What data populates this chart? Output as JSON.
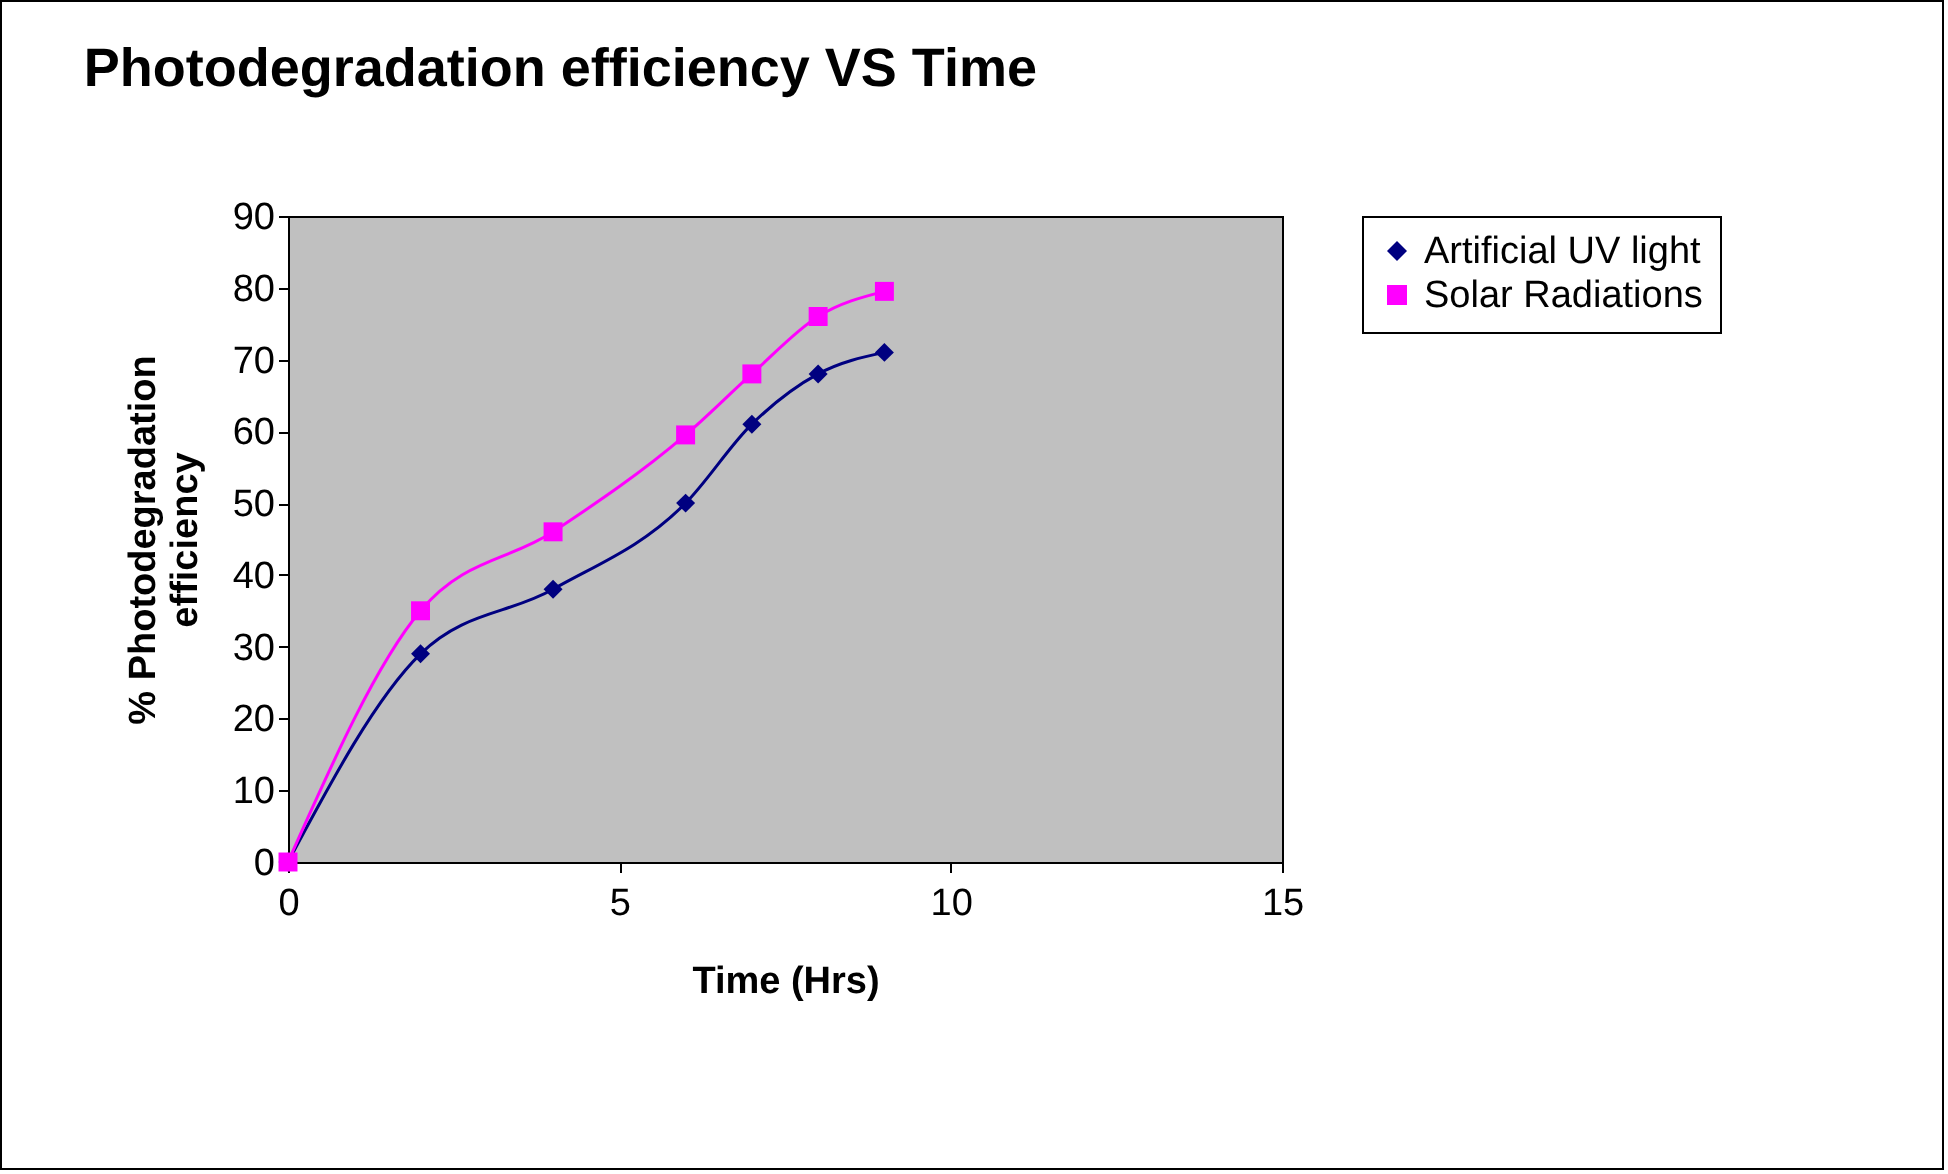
{
  "chart_data": {
    "type": "line",
    "title": "Photodegradation efficiency VS Time",
    "xlabel": "Time (Hrs)",
    "ylabel": "% Photodegradation efficiency",
    "xlim": [
      0,
      15
    ],
    "xticks": [
      0,
      5,
      10,
      15
    ],
    "ylim": [
      0,
      90
    ],
    "yticks": [
      0,
      10,
      20,
      30,
      40,
      50,
      60,
      70,
      80,
      90
    ],
    "grid": false,
    "legend": "right",
    "series": [
      {
        "name": "Artificial UV light",
        "color": "#000080",
        "marker": "diamond",
        "x": [
          0,
          2,
          4,
          6,
          7,
          8,
          9
        ],
        "values": [
          0,
          29,
          38,
          50,
          61,
          68,
          71
        ]
      },
      {
        "name": "Solar Radiations",
        "color": "#ff00ff",
        "marker": "square",
        "x": [
          0,
          2,
          4,
          6,
          7,
          8,
          9
        ],
        "values": [
          0,
          35,
          46,
          59.5,
          68,
          76,
          79.5
        ]
      }
    ]
  }
}
